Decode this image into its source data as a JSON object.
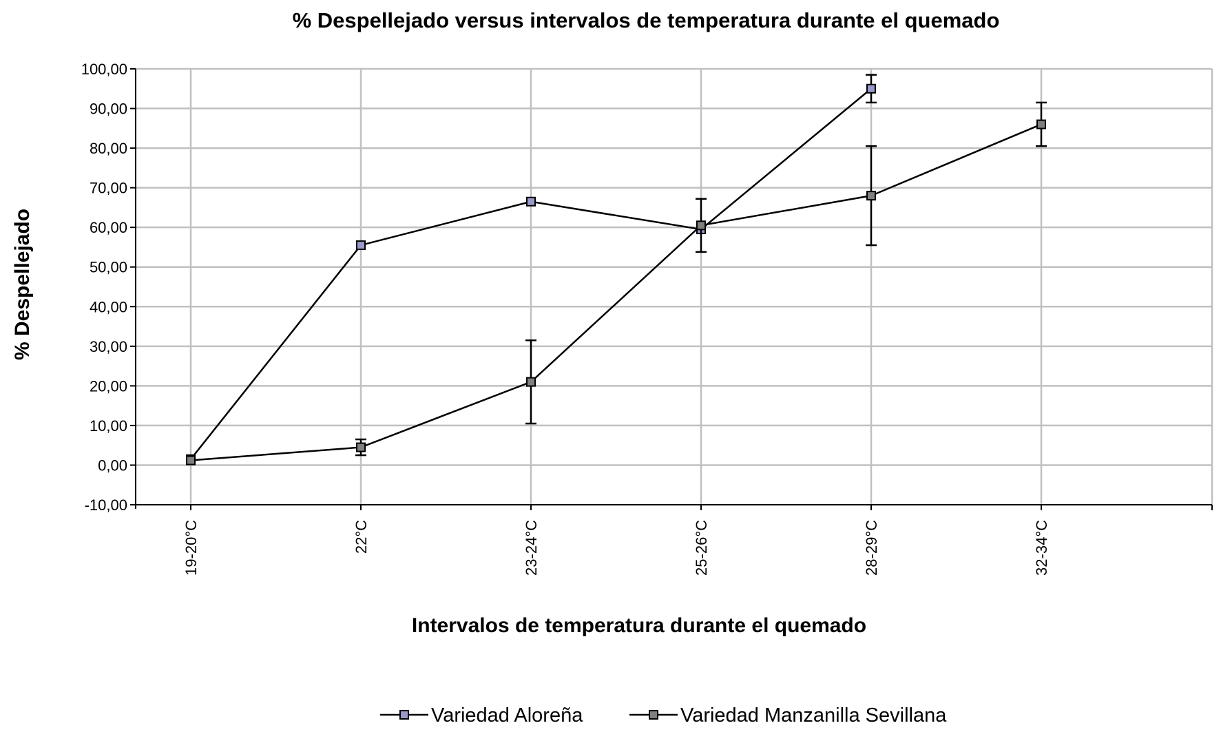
{
  "chart_data": {
    "type": "line",
    "title": "% Despellejado versus intervalos de temperatura durante el quemado",
    "xlabel": "Intervalos de temperatura durante el quemado",
    "ylabel": "% Despellejado",
    "categories": [
      "19-20°C",
      "22°C",
      "23-24°C",
      "25-26°C",
      "28-29°C",
      "32-34°C"
    ],
    "ylim": [
      -10,
      100
    ],
    "y_ticks": [
      -10,
      0,
      10,
      20,
      30,
      40,
      50,
      60,
      70,
      80,
      90,
      100
    ],
    "y_tick_labels": [
      "-10,00",
      "0,00",
      "10,00",
      "20,00",
      "30,00",
      "40,00",
      "50,00",
      "60,00",
      "70,00",
      "80,00",
      "90,00",
      "100,00"
    ],
    "grid": true,
    "legend_position": "bottom",
    "series": [
      {
        "name": "Variedad Aloreña",
        "color": "#9999cc",
        "values": [
          1.5,
          55.5,
          66.5,
          59.5,
          95,
          null
        ],
        "error": [
          null,
          null,
          null,
          null,
          3.5,
          null
        ]
      },
      {
        "name": "Variedad Manzanilla Sevillana",
        "color": "#808080",
        "values": [
          1.2,
          4.5,
          21,
          60.5,
          68,
          86
        ],
        "error": [
          null,
          2,
          10.5,
          6.7,
          12.5,
          5.5
        ]
      }
    ]
  }
}
